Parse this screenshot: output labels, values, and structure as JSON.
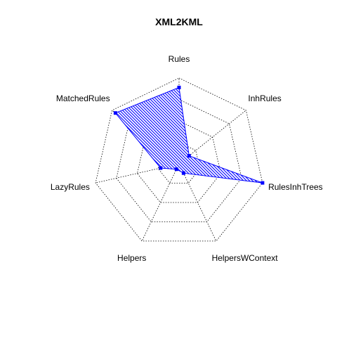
{
  "chart_data": {
    "type": "radar",
    "title": "XML2KML",
    "categories": [
      "Rules",
      "InhRules",
      "RulesInhTrees",
      "HelpersWContext",
      "Helpers",
      "LazyRules",
      "MatchedRules"
    ],
    "range": [
      0,
      1
    ],
    "grid_levels": 4,
    "grid_style": "dotted",
    "series": [
      {
        "values": [
          0.89,
          0.15,
          1.0,
          0.12,
          0.07,
          0.22,
          0.95
        ],
        "fill_color": "#0000ff",
        "fill_pattern": "hatched",
        "line_color": "#0000ff"
      }
    ]
  }
}
